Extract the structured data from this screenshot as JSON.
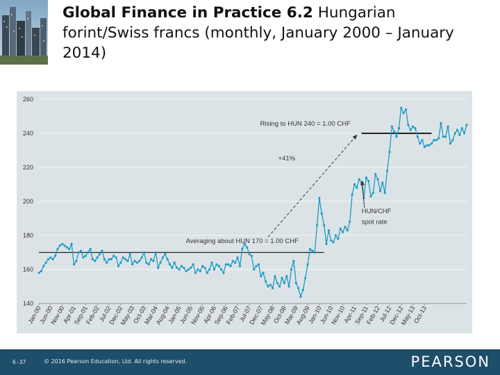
{
  "slide": {
    "title_bold": "Global Finance in Practice 6.2",
    "title_rest": " Hungarian forint/Swiss francs (monthly, January 2000 – January 2014)",
    "page_number": "6-37",
    "copyright": "© 2016 Pearson Education, Ltd. All rights reserved.",
    "brand": "PEARSON"
  },
  "colors": {
    "series": "#1d9bc0",
    "reference_line": "#222222",
    "annotation": "#555555",
    "plot_bg": "#dce3e7",
    "footer_bg": "#1d4e6a"
  },
  "chart_data": {
    "type": "line",
    "title": "",
    "xlabel": "",
    "ylabel": "",
    "ylim": [
      140,
      260
    ],
    "yticks": [
      140,
      160,
      180,
      200,
      220,
      240,
      260
    ],
    "grid": true,
    "x_ticks": [
      "Jan-00",
      "Jun-00",
      "Nov-00",
      "Apr-01",
      "Sep-01",
      "Feb-02",
      "Jul-02",
      "Dec-02",
      "May-03",
      "Oct-03",
      "Mar-04",
      "Aug-04",
      "Jan-05",
      "Jun-05",
      "Nov-05",
      "Apr-06",
      "Sep-06",
      "Feb-07",
      "Jul-07",
      "Dec-07",
      "May-08",
      "Oct-08",
      "Mar-09",
      "Aug-09",
      "Jan-10",
      "Jun-10",
      "Nov-10",
      "Apr-11",
      "Sep-11",
      "Feb-12",
      "Jul-12",
      "Dec-12",
      "May-13",
      "Oct-13"
    ],
    "series": [
      {
        "name": "HUN/CHF spot rate",
        "start": "Jan-00",
        "frequency": "monthly",
        "values": [
          158,
          159,
          162,
          164,
          166,
          167,
          166,
          168,
          172,
          174,
          175,
          174,
          173,
          172,
          175,
          163,
          165,
          170,
          171,
          167,
          168,
          170,
          172,
          166,
          165,
          167,
          169,
          171,
          166,
          164,
          166,
          166,
          168,
          167,
          162,
          164,
          167,
          166,
          165,
          169,
          163,
          165,
          164,
          165,
          167,
          170,
          164,
          163,
          166,
          165,
          170,
          161,
          164,
          167,
          169,
          166,
          163,
          161,
          164,
          161,
          160,
          162,
          161,
          159,
          160,
          161,
          163,
          158,
          160,
          159,
          162,
          161,
          158,
          160,
          164,
          160,
          163,
          162,
          160,
          158,
          163,
          163,
          162,
          165,
          164,
          167,
          162,
          172,
          175,
          173,
          169,
          168,
          160,
          162,
          163,
          156,
          158,
          153,
          150,
          151,
          149,
          156,
          152,
          150,
          155,
          152,
          156,
          150,
          160,
          165,
          152,
          149,
          144,
          148,
          155,
          163,
          172,
          171,
          170,
          186,
          202,
          193,
          186,
          175,
          183,
          177,
          176,
          180,
          178,
          184,
          182,
          185,
          183,
          188,
          204,
          210,
          208,
          213,
          211,
          202,
          214,
          212,
          203,
          205,
          216,
          213,
          206,
          211,
          205,
          218,
          229,
          244,
          241,
          238,
          243,
          255,
          252,
          254,
          245,
          242,
          244,
          243,
          238,
          234,
          236,
          232,
          233,
          233,
          234,
          236,
          236,
          237,
          246,
          238,
          238,
          244,
          234,
          236,
          240,
          242,
          239,
          243,
          240,
          245
        ]
      }
    ],
    "reference_lines": [
      {
        "y": 170,
        "from": "Jan-00",
        "to": "Mar-10",
        "label": "Averaging about HUN 170 = 1.00 CHF"
      },
      {
        "y": 240,
        "from": "Jul-11",
        "to": "Jan-14",
        "label": "Rising to HUN 240 = 1.00 CHF"
      }
    ],
    "annotations": [
      {
        "text": "+41%",
        "x": "Nov-08",
        "y": 224
      },
      {
        "text": "HUN/CHF",
        "x": "Jan-12",
        "y": 193
      },
      {
        "text": "spot rate",
        "x": "Jan-12",
        "y": 187.6
      }
    ]
  }
}
